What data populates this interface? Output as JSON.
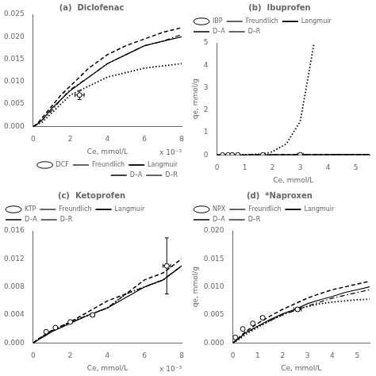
{
  "chart_data": [
    {
      "type": "line",
      "title": "(a)  Diclofenac",
      "x_label": "Ce, mmol/L",
      "annotation": "x 10⁻³",
      "xlim": [
        0,
        0.008
      ],
      "xticks": [
        0,
        {
          "value": 0.002,
          "label": "2"
        },
        {
          "value": 0.004,
          "label": "4"
        },
        {
          "value": 0.006,
          "label": "6"
        },
        {
          "value": 0.008,
          "label": "8"
        }
      ],
      "ylim": [
        0,
        0.025
      ],
      "yticks": [
        {
          "value": 0,
          "label": "0.000"
        },
        {
          "value": 0.005,
          "label": "0.005"
        },
        {
          "value": 0.01,
          "label": "0.010"
        },
        {
          "value": 0.015,
          "label": "0.015"
        },
        {
          "value": 0.02,
          "label": "0.020"
        },
        {
          "value": 0.025,
          "label": "0.025"
        }
      ],
      "grid": false,
      "legend": "lower right",
      "series": [
        {
          "name": "DCF",
          "type": "scatter",
          "marker": "circle",
          "color": "black",
          "x": [
            0.0025
          ],
          "values": [
            0.007
          ],
          "xerr": [
            0.00025
          ],
          "yerr": [
            0.001
          ]
        },
        {
          "name": "Freundlich",
          "type": "line",
          "line_style": "dashdot",
          "color": "black",
          "x": [
            0,
            0.0002,
            0.0005,
            0.001,
            0.0015,
            0.002,
            0.003,
            0.004,
            0.005,
            0.006,
            0.007,
            0.008
          ],
          "values": [
            0,
            0.0005,
            0.0015,
            0.0035,
            0.006,
            0.0082,
            0.011,
            0.014,
            0.016,
            0.018,
            0.019,
            0.0205
          ]
        },
        {
          "name": "Langmuir",
          "type": "line",
          "line_style": "dotted",
          "color": "black",
          "x": [
            0,
            0.0005,
            0.001,
            0.002,
            0.003,
            0.004,
            0.005,
            0.006,
            0.007,
            0.008
          ],
          "values": [
            0,
            0.001,
            0.003,
            0.007,
            0.009,
            0.011,
            0.012,
            0.013,
            0.0135,
            0.014
          ]
        },
        {
          "name": "D–A",
          "type": "line",
          "line_style": "dashed",
          "color": "black",
          "x": [
            0,
            0.0002,
            0.0005,
            0.001,
            0.0015,
            0.002,
            0.003,
            0.004,
            0.005,
            0.006,
            0.007,
            0.008
          ],
          "values": [
            0,
            0.0005,
            0.002,
            0.0045,
            0.007,
            0.009,
            0.013,
            0.016,
            0.018,
            0.0195,
            0.021,
            0.022
          ]
        },
        {
          "name": "D–R",
          "type": "line",
          "line_style": "solid",
          "color": "black",
          "x": [
            0,
            0.0002,
            0.0005,
            0.001,
            0.0015,
            0.002,
            0.003,
            0.004,
            0.005,
            0.006,
            0.007,
            0.008
          ],
          "values": [
            0,
            0.0004,
            0.0015,
            0.004,
            0.006,
            0.008,
            0.011,
            0.014,
            0.016,
            0.018,
            0.019,
            0.02
          ]
        }
      ]
    },
    {
      "type": "line",
      "title": "(b)  Ibuprofen",
      "x_label": "Ce, mmol/L",
      "y_label": "qe, mmol/g",
      "xlim": [
        0,
        5.5
      ],
      "xticks": [
        0,
        1,
        2,
        3,
        4,
        5
      ],
      "ylim": [
        0,
        5
      ],
      "yticks": [
        0,
        1,
        2,
        3,
        4,
        5
      ],
      "grid": false,
      "legend": "upper left",
      "series": [
        {
          "name": "IBP",
          "type": "scatter",
          "marker": "circle",
          "color": "black",
          "x": [
            0.2,
            0.4,
            0.55,
            0.75,
            1.65,
            3.0
          ],
          "values": [
            0.001,
            0.0012,
            0.0015,
            0.002,
            0.0025,
            0.008
          ],
          "xerr": [
            0.03,
            0.03,
            0.04,
            0.04,
            0.05,
            0.1
          ],
          "yerr": [
            8e-05,
            0.0001,
            0.0001,
            0.0001,
            0.0001,
            0.0004
          ]
        },
        {
          "name": "Freundlich",
          "type": "line",
          "line_style": "dashdot",
          "color": "black",
          "x": [
            0,
            0.5,
            1.0,
            1.5,
            2.0,
            2.5,
            3.0,
            3.5,
            4.0,
            4.5,
            5.0,
            5.5
          ],
          "values": [
            0,
            0.0027,
            0.0052,
            0.0078,
            0.0103,
            0.0128,
            0.0152,
            0.0175,
            0.0198,
            0.022,
            0.024,
            0.026
          ]
        },
        {
          "name": "Langmuir",
          "type": "line",
          "line_style": "dotted",
          "color": "black",
          "x": [
            0,
            0.3,
            0.5,
            0.8,
            1.0,
            1.2,
            1.5,
            1.8,
            2.0,
            2.5,
            3.0,
            3.5
          ],
          "values": [
            0,
            0.002,
            0.004,
            0.008,
            0.013,
            0.021,
            0.04,
            0.08,
            0.15,
            0.5,
            1.5,
            5.0
          ]
        },
        {
          "name": "D–A",
          "type": "line",
          "line_style": "dashed",
          "color": "black",
          "x": [
            0,
            0.5,
            1.0,
            1.5,
            2.0,
            2.5,
            3.0,
            3.5,
            4.0,
            4.5,
            5.0,
            5.5
          ],
          "values": [
            0,
            0.0025,
            0.005,
            0.0075,
            0.01,
            0.0125,
            0.015,
            0.0173,
            0.0196,
            0.022,
            0.024,
            0.026
          ]
        },
        {
          "name": "D–R",
          "type": "line",
          "line_style": "solid",
          "color": "black",
          "x": [
            0,
            0.5,
            1.0,
            1.5,
            2.0,
            2.5,
            3.0,
            3.5,
            4.0,
            4.5,
            5.0,
            5.5
          ],
          "values": [
            0,
            0.0022,
            0.0044,
            0.0066,
            0.009,
            0.011,
            0.013,
            0.015,
            0.017,
            0.019,
            0.021,
            0.023
          ]
        }
      ]
    },
    {
      "type": "line",
      "title": "(c)  Ketoprofen",
      "x_label": "Ce, mmol/L",
      "annotation": "x 10⁻³",
      "xlim": [
        0,
        0.008
      ],
      "xticks": [
        0,
        {
          "value": 0.002,
          "label": "2"
        },
        {
          "value": 0.004,
          "label": "4"
        },
        {
          "value": 0.006,
          "label": "6"
        },
        {
          "value": 0.008,
          "label": "8"
        }
      ],
      "ylim": [
        0,
        0.016
      ],
      "yticks": [
        {
          "value": 0,
          "label": "0.000"
        },
        {
          "value": 0.004,
          "label": "0.004"
        },
        {
          "value": 0.008,
          "label": "0.008"
        },
        {
          "value": 0.012,
          "label": "0.012"
        },
        {
          "value": 0.016,
          "label": "0.016"
        }
      ],
      "grid": false,
      "legend": "upper left",
      "series": [
        {
          "name": "KTP",
          "type": "scatter",
          "marker": "circle",
          "color": "black",
          "x": [
            0.0007,
            0.0012,
            0.002,
            0.0032,
            0.0072
          ],
          "values": [
            0.0016,
            0.0022,
            0.003,
            0.004,
            0.011
          ],
          "xerr": [
            4e-05,
            5e-05,
            8e-05,
            0.0001,
            0.0002
          ],
          "yerr": [
            0.0001,
            0.0001,
            0.0001,
            0.0001,
            0.004
          ]
        },
        {
          "name": "Freundlich",
          "type": "line",
          "line_style": "dashdot",
          "color": "black",
          "x": [
            0,
            0.0003,
            0.0007,
            0.001,
            0.002,
            0.003,
            0.004,
            0.005,
            0.006,
            0.007,
            0.008
          ],
          "values": [
            0,
            0.0006,
            0.0012,
            0.0017,
            0.003,
            0.004,
            0.005,
            0.007,
            0.008,
            0.009,
            0.011
          ]
        },
        {
          "name": "Langmuir",
          "type": "line",
          "line_style": "dotted",
          "color": "black",
          "x": [
            0,
            0.0003,
            0.0007,
            0.001,
            0.002,
            0.003,
            0.004,
            0.005,
            0.006,
            0.007,
            0.008
          ],
          "values": [
            0,
            0.0006,
            0.0012,
            0.0017,
            0.003,
            0.004,
            0.005,
            0.007,
            0.008,
            0.009,
            0.011
          ]
        },
        {
          "name": "D–A",
          "type": "line",
          "line_style": "dashed",
          "color": "black",
          "x": [
            0,
            0.0003,
            0.0007,
            0.001,
            0.002,
            0.003,
            0.004,
            0.005,
            0.006,
            0.007,
            0.008
          ],
          "values": [
            0,
            0.0006,
            0.0013,
            0.0018,
            0.003,
            0.0045,
            0.006,
            0.007,
            0.009,
            0.01,
            0.012
          ]
        },
        {
          "name": "D–R",
          "type": "line",
          "line_style": "solid",
          "color": "black",
          "x": [
            0,
            0.0003,
            0.0007,
            0.001,
            0.002,
            0.003,
            0.004,
            0.005,
            0.006,
            0.007,
            0.008
          ],
          "values": [
            0,
            0.0005,
            0.0011,
            0.0016,
            0.0028,
            0.004,
            0.005,
            0.0065,
            0.008,
            0.009,
            0.011
          ]
        }
      ]
    },
    {
      "type": "line",
      "title": "(d)  *Naproxen",
      "x_label": "Ce, mmol/L",
      "y_label": "qe, mmol/g",
      "xlim": [
        0,
        5.5
      ],
      "xticks": [
        0,
        1,
        2,
        3,
        4,
        5
      ],
      "ylim": [
        0,
        0.02
      ],
      "yticks": [
        {
          "value": 0,
          "label": "0.000"
        },
        {
          "value": 0.005,
          "label": "0.005"
        },
        {
          "value": 0.01,
          "label": "0.010"
        },
        {
          "value": 0.015,
          "label": "0.015"
        },
        {
          "value": 0.02,
          "label": "0.020"
        }
      ],
      "grid": false,
      "legend": "upper left",
      "series": [
        {
          "name": "NPX",
          "type": "scatter",
          "marker": "circle",
          "color": "black",
          "x": [
            0.1,
            0.4,
            0.8,
            1.2,
            2.6
          ],
          "values": [
            0.001,
            0.0025,
            0.0035,
            0.0045,
            0.006
          ],
          "xerr": [
            0.02,
            0.03,
            0.05,
            0.07,
            0.15
          ],
          "yerr": [
            0.0001,
            0.0001,
            0.0001,
            0.0002,
            0.0003
          ]
        },
        {
          "name": "Freundlich",
          "type": "line",
          "line_style": "dashdot",
          "color": "black",
          "x": [
            0,
            0.3,
            0.5,
            1.0,
            1.5,
            2.0,
            2.5,
            3.0,
            3.5,
            4.0,
            4.5,
            5.0,
            5.5
          ],
          "values": [
            0,
            0.001,
            0.0018,
            0.003,
            0.004,
            0.005,
            0.0058,
            0.0066,
            0.0073,
            0.008,
            0.0085,
            0.009,
            0.0095
          ]
        },
        {
          "name": "Langmuir",
          "type": "line",
          "line_style": "dotted",
          "color": "black",
          "x": [
            0,
            0.3,
            0.5,
            1.0,
            1.5,
            2.0,
            2.5,
            3.0,
            3.5,
            4.0,
            4.5,
            5.0,
            5.5
          ],
          "values": [
            0,
            0.0008,
            0.0015,
            0.0028,
            0.004,
            0.005,
            0.006,
            0.0065,
            0.007,
            0.0073,
            0.0075,
            0.0077,
            0.0078
          ]
        },
        {
          "name": "D–A",
          "type": "line",
          "line_style": "dashed",
          "color": "black",
          "x": [
            0,
            0.3,
            0.5,
            1.0,
            1.5,
            2.0,
            2.5,
            3.0,
            3.5,
            4.0,
            4.5,
            5.0,
            5.5
          ],
          "values": [
            0,
            0.0012,
            0.002,
            0.0035,
            0.0048,
            0.006,
            0.007,
            0.008,
            0.0088,
            0.0095,
            0.01,
            0.0105,
            0.011
          ]
        },
        {
          "name": "D–R",
          "type": "line",
          "line_style": "solid",
          "color": "black",
          "x": [
            0,
            0.3,
            0.5,
            1.0,
            1.5,
            2.0,
            2.5,
            3.0,
            3.5,
            4.0,
            4.5,
            5.0,
            5.5
          ],
          "values": [
            0,
            0.001,
            0.0018,
            0.003,
            0.0042,
            0.0052,
            0.006,
            0.007,
            0.0077,
            0.0083,
            0.009,
            0.0095,
            0.01
          ]
        }
      ]
    }
  ]
}
